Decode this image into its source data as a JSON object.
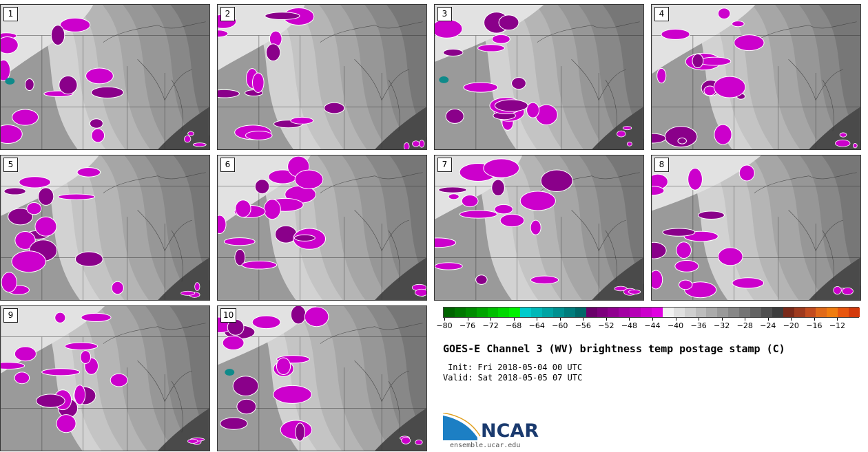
{
  "panels": [
    {
      "label": "1"
    },
    {
      "label": "2"
    },
    {
      "label": "3"
    },
    {
      "label": "4"
    },
    {
      "label": "5"
    },
    {
      "label": "6"
    },
    {
      "label": "7"
    },
    {
      "label": "8"
    },
    {
      "label": "9"
    },
    {
      "label": "10"
    }
  ],
  "colorbar": {
    "ticks": [
      "−80",
      "−76",
      "−72",
      "−68",
      "−64",
      "−60",
      "−56",
      "−52",
      "−48",
      "−44",
      "−40",
      "−36",
      "−32",
      "−28",
      "−24",
      "−20",
      "−16",
      "−12"
    ],
    "colors": [
      "#006400",
      "#007800",
      "#008c00",
      "#00a500",
      "#00bf00",
      "#00d800",
      "#00f000",
      "#00cccc",
      "#00b8b8",
      "#00a4a4",
      "#009090",
      "#007c7c",
      "#006868",
      "#6a006a",
      "#7d007d",
      "#90008f",
      "#a300a3",
      "#b600b6",
      "#cc00cc",
      "#e000e0",
      "#f2f2f2",
      "#e0e0e0",
      "#cfcfcf",
      "#bdbdbd",
      "#ababab",
      "#999999",
      "#878787",
      "#757575",
      "#636363",
      "#505050",
      "#3d3d3d",
      "#7a2a1a",
      "#9e3a1e",
      "#c24c1f",
      "#e06a1a",
      "#f07d10",
      "#e8560e",
      "#d33a0c"
    ]
  },
  "title": "GOES-E Channel 3 (WV) brightness temp postage stamp (C)",
  "init": "Init: Fri 2018-05-04 00 UTC",
  "valid": "Valid: Sat 2018-05-05 07 UTC",
  "logo": {
    "name": "NCAR",
    "url": "ensemble.ucar.edu"
  },
  "palette": {
    "magenta": "#cc00cc",
    "dark_magenta": "#8a008a",
    "teal": "#0f8a8a"
  }
}
